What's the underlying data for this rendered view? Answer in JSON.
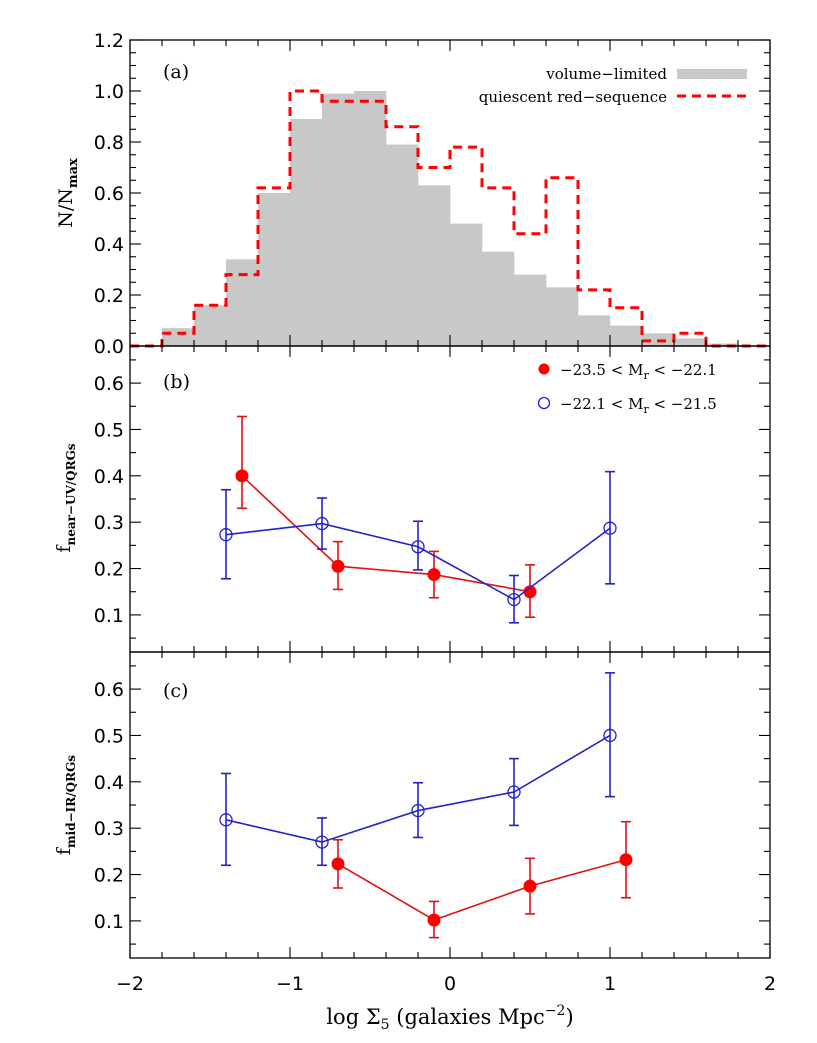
{
  "colors": {
    "hist_fill": "#c8c8c8",
    "red": "#ff0000",
    "red_dark": "#e31010",
    "blue": "#2222cc"
  },
  "xaxis": {
    "label_pre": "log Σ",
    "label_sub": "5",
    "label_post": " (galaxies Mpc",
    "label_sup": "−2",
    "label_close": ")",
    "ticks": [
      "−2",
      "−1",
      "0",
      "1",
      "2"
    ]
  },
  "panels": {
    "a": {
      "letter": "(a)",
      "ylabel_main": "N/N",
      "ylabel_sub": "max",
      "yticks": [
        "0.0",
        "0.2",
        "0.4",
        "0.6",
        "0.8",
        "1.0",
        "1.2"
      ],
      "legend_volume": "volume−limited",
      "legend_quiescent": "quiescent red−sequence"
    },
    "b": {
      "letter": "(b)",
      "ylabel_main": "f",
      "ylabel_sub": "near−UV/QRGs",
      "yticks": [
        "0.1",
        "0.2",
        "0.3",
        "0.4",
        "0.5",
        "0.6"
      ],
      "legend_red": "−23.5 < M",
      "legend_red_sub": "r",
      "legend_red_tail": " < −22.1",
      "legend_blue": "−22.1 < M",
      "legend_blue_sub": "r",
      "legend_blue_tail": " < −21.5"
    },
    "c": {
      "letter": "(c)",
      "ylabel_main": "f",
      "ylabel_sub": "mid−IR/QRGs",
      "yticks": [
        "0.1",
        "0.2",
        "0.3",
        "0.4",
        "0.5",
        "0.6"
      ]
    }
  },
  "chart_data": [
    {
      "type": "bar",
      "panel": "a",
      "xlim": [
        -2,
        2
      ],
      "ylim": [
        0,
        1.2
      ],
      "bin_edges": [
        -2.0,
        -1.8,
        -1.6,
        -1.4,
        -1.2,
        -1.0,
        -0.8,
        -0.6,
        -0.4,
        -0.2,
        0.0,
        0.2,
        0.4,
        0.6,
        0.8,
        1.0,
        1.2,
        1.4,
        1.6,
        1.8,
        2.0
      ],
      "series": [
        {
          "name": "volume-limited",
          "values": [
            0.0,
            0.07,
            0.16,
            0.34,
            0.6,
            0.89,
            0.99,
            1.0,
            0.79,
            0.63,
            0.48,
            0.37,
            0.28,
            0.23,
            0.12,
            0.08,
            0.05,
            0.03,
            0.01,
            0.0
          ]
        },
        {
          "name": "quiescent red-sequence",
          "values": [
            0.0,
            0.05,
            0.16,
            0.28,
            0.62,
            1.0,
            0.96,
            0.96,
            0.86,
            0.7,
            0.78,
            0.62,
            0.44,
            0.66,
            0.22,
            0.15,
            0.02,
            0.05,
            0.0,
            0.0
          ]
        }
      ]
    },
    {
      "type": "scatter",
      "panel": "b",
      "xlim": [
        -2,
        2
      ],
      "ylim": [
        0.02,
        0.68
      ],
      "series": [
        {
          "name": "-23.5 < Mr < -22.1",
          "x": [
            -1.3,
            -0.7,
            -0.1,
            0.5
          ],
          "y": [
            0.4,
            0.205,
            0.187,
            0.15
          ],
          "yerr_low": [
            0.07,
            0.05,
            0.05,
            0.055
          ],
          "yerr_high": [
            0.128,
            0.053,
            0.05,
            0.058
          ]
        },
        {
          "name": "-22.1 < Mr < -21.5",
          "x": [
            -1.4,
            -0.8,
            -0.2,
            0.4,
            1.0
          ],
          "y": [
            0.273,
            0.297,
            0.247,
            0.133,
            0.287
          ],
          "yerr_low": [
            0.095,
            0.055,
            0.05,
            0.05,
            0.12
          ],
          "yerr_high": [
            0.097,
            0.055,
            0.055,
            0.052,
            0.122
          ]
        }
      ]
    },
    {
      "type": "scatter",
      "panel": "c",
      "xlim": [
        -2,
        2
      ],
      "ylim": [
        0.02,
        0.68
      ],
      "series": [
        {
          "name": "-23.5 < Mr < -22.1",
          "x": [
            -0.7,
            -0.1,
            0.5,
            1.1
          ],
          "y": [
            0.223,
            0.102,
            0.175,
            0.232
          ],
          "yerr_low": [
            0.052,
            0.038,
            0.06,
            0.082
          ],
          "yerr_high": [
            0.052,
            0.04,
            0.06,
            0.082
          ]
        },
        {
          "name": "-22.1 < Mr < -21.5",
          "x": [
            -1.4,
            -0.8,
            -0.2,
            0.4,
            1.0
          ],
          "y": [
            0.318,
            0.27,
            0.338,
            0.378,
            0.5
          ],
          "yerr_low": [
            0.098,
            0.05,
            0.058,
            0.072,
            0.132
          ],
          "yerr_high": [
            0.1,
            0.052,
            0.06,
            0.072,
            0.135
          ]
        }
      ]
    }
  ]
}
